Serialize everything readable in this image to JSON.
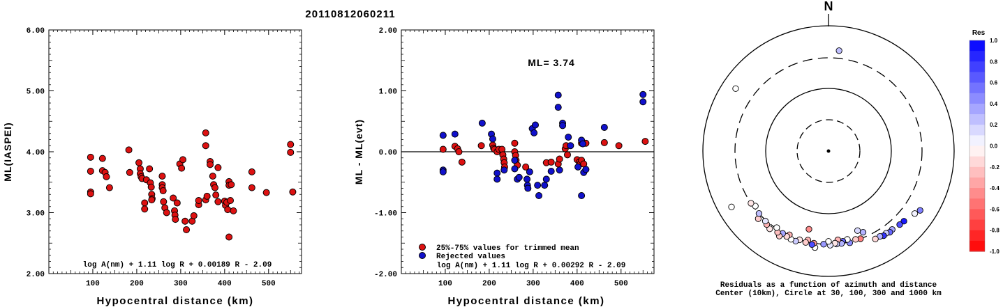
{
  "header": {
    "event_id": "20110812060211"
  },
  "chart_data": [
    {
      "type": "scatter",
      "xlabel": "Hypocentral distance (km)",
      "ylabel": "ML(IASPEI)",
      "xlim": [
        0,
        575
      ],
      "ylim": [
        2.0,
        6.0
      ],
      "xticks": [
        "100",
        "200",
        "300",
        "400",
        "500"
      ],
      "yticks": [
        "2.00",
        "3.00",
        "4.00",
        "5.00",
        "6.00"
      ],
      "formula": "log A(nm) + 1.11 log R + 0.00189 R - 2.09",
      "colors": {
        "point": "#dd1111"
      },
      "series": [
        {
          "points": [
            [
              95,
              3.91
            ],
            [
              95,
              3.68
            ],
            [
              95,
              3.34
            ],
            [
              95,
              3.31
            ],
            [
              122,
              3.89
            ],
            [
              122,
              3.69
            ],
            [
              128,
              3.66
            ],
            [
              131,
              3.59
            ],
            [
              138,
              3.41
            ],
            [
              182,
              4.03
            ],
            [
              184,
              3.66
            ],
            [
              205,
              3.82
            ],
            [
              208,
              3.72
            ],
            [
              208,
              3.64
            ],
            [
              210,
              3.59
            ],
            [
              212,
              3.56
            ],
            [
              218,
              3.16
            ],
            [
              218,
              3.06
            ],
            [
              222,
              3.54
            ],
            [
              229,
              3.72
            ],
            [
              231,
              3.49
            ],
            [
              233,
              3.42
            ],
            [
              234,
              3.3
            ],
            [
              235,
              3.23
            ],
            [
              234,
              3.21
            ],
            [
              258,
              3.6
            ],
            [
              258,
              3.46
            ],
            [
              258,
              3.41
            ],
            [
              260,
              3.36
            ],
            [
              261,
              3.18
            ],
            [
              264,
              3.08
            ],
            [
              268,
              3.0
            ],
            [
              283,
              3.24
            ],
            [
              286,
              3.03
            ],
            [
              287,
              2.96
            ],
            [
              288,
              2.89
            ],
            [
              292,
              3.16
            ],
            [
              298,
              3.8
            ],
            [
              302,
              3.73
            ],
            [
              305,
              3.87
            ],
            [
              310,
              2.86
            ],
            [
              313,
              2.72
            ],
            [
              326,
              2.86
            ],
            [
              330,
              2.95
            ],
            [
              341,
              3.13
            ],
            [
              341,
              3.2
            ],
            [
              357,
              4.31
            ],
            [
              357,
              4.1
            ],
            [
              357,
              3.21
            ],
            [
              360,
              3.27
            ],
            [
              367,
              3.84
            ],
            [
              367,
              3.79
            ],
            [
              373,
              3.6
            ],
            [
              375,
              3.46
            ],
            [
              378,
              3.41
            ],
            [
              380,
              3.29
            ],
            [
              385,
              3.18
            ],
            [
              385,
              3.74
            ],
            [
              400,
              3.19
            ],
            [
              402,
              3.12
            ],
            [
              405,
              3.17
            ],
            [
              407,
              3.05
            ],
            [
              410,
              3.51
            ],
            [
              410,
              3.45
            ],
            [
              410,
              2.6
            ],
            [
              413,
              3.2
            ],
            [
              415,
              3.46
            ],
            [
              420,
              3.03
            ],
            [
              462,
              3.67
            ],
            [
              462,
              3.41
            ],
            [
              495,
              3.33
            ],
            [
              550,
              4.12
            ],
            [
              550,
              3.99
            ],
            [
              555,
              3.34
            ]
          ]
        }
      ]
    },
    {
      "type": "scatter",
      "xlabel": "Hypocentral distance (km)",
      "ylabel": "ML - ML(evt)",
      "xlim": [
        0,
        575
      ],
      "ylim": [
        -2.0,
        2.0
      ],
      "xticks": [
        "100",
        "200",
        "300",
        "400",
        "500"
      ],
      "yticks": [
        "-2.00",
        "-1.00",
        "0.00",
        "1.00",
        "2.00"
      ],
      "annotation": "ML= 3.74",
      "formula": "log A(nm) + 1.11 log R + 0.00292 R - 2.09",
      "reference_line": 0.0,
      "colors": {
        "trimmed": "#dd1111",
        "rejected": "#1111cc"
      },
      "legend": [
        {
          "label": "25%-75% values for trimmed mean",
          "color": "#dd1111"
        },
        {
          "label": "Rejected values",
          "color": "#1111cc"
        }
      ],
      "series": [
        {
          "name": "25%-75% values for trimmed mean",
          "points": [
            [
              95,
              0.04
            ],
            [
              122,
              0.09
            ],
            [
              128,
              0.05
            ],
            [
              131,
              0.0
            ],
            [
              138,
              -0.17
            ],
            [
              182,
              0.1
            ],
            [
              208,
              0.11
            ],
            [
              210,
              0.06
            ],
            [
              212,
              0.04
            ],
            [
              218,
              0.0
            ],
            [
              222,
              0.04
            ],
            [
              229,
              0.04
            ],
            [
              231,
              -0.05
            ],
            [
              233,
              -0.12
            ],
            [
              234,
              -0.18
            ],
            [
              235,
              -0.25
            ],
            [
              258,
              0.14
            ],
            [
              258,
              0.0
            ],
            [
              260,
              -0.06
            ],
            [
              261,
              -0.14
            ],
            [
              264,
              -0.22
            ],
            [
              283,
              -0.25
            ],
            [
              330,
              -0.18
            ],
            [
              341,
              -0.17
            ],
            [
              357,
              -0.2
            ],
            [
              360,
              -0.12
            ],
            [
              373,
              0.05
            ],
            [
              375,
              0.1
            ],
            [
              378,
              -0.05
            ],
            [
              400,
              -0.13
            ],
            [
              405,
              -0.17
            ],
            [
              407,
              -0.2
            ],
            [
              410,
              -0.14
            ],
            [
              410,
              0.14
            ],
            [
              415,
              -0.2
            ],
            [
              420,
              0.14
            ],
            [
              462,
              0.15
            ],
            [
              495,
              0.1
            ],
            [
              555,
              0.17
            ]
          ]
        },
        {
          "name": "Rejected values",
          "points": [
            [
              95,
              0.27
            ],
            [
              95,
              -0.3
            ],
            [
              95,
              -0.33
            ],
            [
              122,
              0.29
            ],
            [
              184,
              0.47
            ],
            [
              205,
              0.29
            ],
            [
              208,
              0.21
            ],
            [
              218,
              -0.35
            ],
            [
              218,
              -0.45
            ],
            [
              234,
              -0.3
            ],
            [
              258,
              -0.14
            ],
            [
              258,
              -0.28
            ],
            [
              264,
              -0.45
            ],
            [
              268,
              -0.42
            ],
            [
              286,
              -0.45
            ],
            [
              287,
              -0.55
            ],
            [
              288,
              -0.6
            ],
            [
              292,
              -0.33
            ],
            [
              298,
              0.38
            ],
            [
              302,
              0.31
            ],
            [
              305,
              0.44
            ],
            [
              310,
              -0.55
            ],
            [
              313,
              -0.72
            ],
            [
              326,
              -0.55
            ],
            [
              330,
              -0.45
            ],
            [
              341,
              -0.32
            ],
            [
              357,
              0.93
            ],
            [
              357,
              0.73
            ],
            [
              360,
              -0.3
            ],
            [
              367,
              0.47
            ],
            [
              367,
              0.43
            ],
            [
              380,
              0.24
            ],
            [
              385,
              0.1
            ],
            [
              402,
              -0.25
            ],
            [
              410,
              0.19
            ],
            [
              410,
              -0.72
            ],
            [
              413,
              0.13
            ],
            [
              415,
              -0.34
            ],
            [
              420,
              -0.29
            ],
            [
              462,
              0.4
            ],
            [
              550,
              0.94
            ],
            [
              550,
              0.82
            ]
          ]
        }
      ]
    },
    {
      "type": "scatter",
      "subtype": "azimuth-distance polar plot",
      "north_label": "N",
      "caption_line1": "Residuals as a function of azimuth and distance",
      "caption_line2": "Center (10km), Circle at 30, 100, 300 and 1000 km",
      "colorbar_title": "Res",
      "colorbar_ticks": [
        "1.0",
        "0.8",
        "0.6",
        "0.4",
        "0.2",
        "0.0",
        "-0.2",
        "-0.4",
        "-0.6",
        "-0.8",
        "-1.0"
      ],
      "colors": {
        "positive": "#0000ff",
        "zero": "#ffffff",
        "negative": "#ff0000"
      },
      "stations": [
        {
          "azimuth_deg": 304,
          "distance_km": 600,
          "residual": 0.0
        },
        {
          "azimuth_deg": 6,
          "distance_km": 400,
          "residual": 0.25
        },
        {
          "azimuth_deg": 123,
          "distance_km": 540,
          "residual": 0.5
        },
        {
          "azimuth_deg": 126,
          "distance_km": 490,
          "residual": 0.05
        },
        {
          "azimuth_deg": 133,
          "distance_km": 430,
          "residual": 0.9
        },
        {
          "azimuth_deg": 136,
          "distance_km": 420,
          "residual": 0.7
        },
        {
          "azimuth_deg": 141,
          "distance_km": 400,
          "residual": 0.35
        },
        {
          "azimuth_deg": 143,
          "distance_km": 410,
          "residual": 0.6
        },
        {
          "azimuth_deg": 145,
          "distance_km": 390,
          "residual": 0.2
        },
        {
          "azimuth_deg": 147,
          "distance_km": 400,
          "residual": 0.8
        },
        {
          "azimuth_deg": 149,
          "distance_km": 380,
          "residual": 0.3
        },
        {
          "azimuth_deg": 152,
          "distance_km": 380,
          "residual": -0.15
        },
        {
          "azimuth_deg": 157,
          "distance_km": 250,
          "residual": 0.3
        },
        {
          "azimuth_deg": 160,
          "distance_km": 220,
          "residual": 0.15
        },
        {
          "azimuth_deg": 160,
          "distance_km": 300,
          "residual": -0.5
        },
        {
          "azimuth_deg": 163,
          "distance_km": 290,
          "residual": -0.2
        },
        {
          "azimuth_deg": 167,
          "distance_km": 310,
          "residual": 0.45
        },
        {
          "azimuth_deg": 168,
          "distance_km": 270,
          "residual": 0.0
        },
        {
          "azimuth_deg": 171,
          "distance_km": 280,
          "residual": 0.6
        },
        {
          "azimuth_deg": 172,
          "distance_km": 300,
          "residual": 0.3
        },
        {
          "azimuth_deg": 174,
          "distance_km": 260,
          "residual": -0.3
        },
        {
          "azimuth_deg": 175,
          "distance_km": 300,
          "residual": 0.2
        },
        {
          "azimuth_deg": 176,
          "distance_km": 290,
          "residual": -0.1
        },
        {
          "azimuth_deg": 179,
          "distance_km": 310,
          "residual": 0.1
        },
        {
          "azimuth_deg": 180,
          "distance_km": 270,
          "residual": 0.0
        },
        {
          "azimuth_deg": 183,
          "distance_km": 300,
          "residual": 0.4
        },
        {
          "azimuth_deg": 188,
          "distance_km": 350,
          "residual": 0.0
        },
        {
          "azimuth_deg": 189,
          "distance_km": 300,
          "residual": -0.4
        },
        {
          "azimuth_deg": 190,
          "distance_km": 320,
          "residual": 0.7
        },
        {
          "azimuth_deg": 193,
          "distance_km": 280,
          "residual": -0.3
        },
        {
          "azimuth_deg": 194,
          "distance_km": 190,
          "residual": -0.45
        },
        {
          "azimuth_deg": 194,
          "distance_km": 310,
          "residual": -0.2
        },
        {
          "azimuth_deg": 198,
          "distance_km": 300,
          "residual": -0.1
        },
        {
          "azimuth_deg": 200,
          "distance_km": 330,
          "residual": 0.2
        },
        {
          "azimuth_deg": 203,
          "distance_km": 330,
          "residual": 0.0
        },
        {
          "azimuth_deg": 205,
          "distance_km": 290,
          "residual": -0.3
        },
        {
          "azimuth_deg": 206,
          "distance_km": 320,
          "residual": -0.15
        },
        {
          "azimuth_deg": 209,
          "distance_km": 310,
          "residual": 0.35
        },
        {
          "azimuth_deg": 210,
          "distance_km": 360,
          "residual": -0.2
        },
        {
          "azimuth_deg": 212,
          "distance_km": 330,
          "residual": -0.25
        },
        {
          "azimuth_deg": 214,
          "distance_km": 290,
          "residual": 0.0
        },
        {
          "azimuth_deg": 217,
          "distance_km": 350,
          "residual": -0.1
        },
        {
          "azimuth_deg": 220,
          "distance_km": 330,
          "residual": -0.3
        },
        {
          "azimuth_deg": 222,
          "distance_km": 310,
          "residual": 0.1
        },
        {
          "azimuth_deg": 226,
          "distance_km": 350,
          "residual": -0.2
        },
        {
          "azimuth_deg": 228,
          "distance_km": 300,
          "residual": 0.25
        },
        {
          "azimuth_deg": 233,
          "distance_km": 280,
          "residual": 0.0
        },
        {
          "azimuth_deg": 236,
          "distance_km": 300,
          "residual": -0.1
        },
        {
          "azimuth_deg": 240,
          "distance_km": 600,
          "residual": 0.0
        }
      ]
    }
  ]
}
